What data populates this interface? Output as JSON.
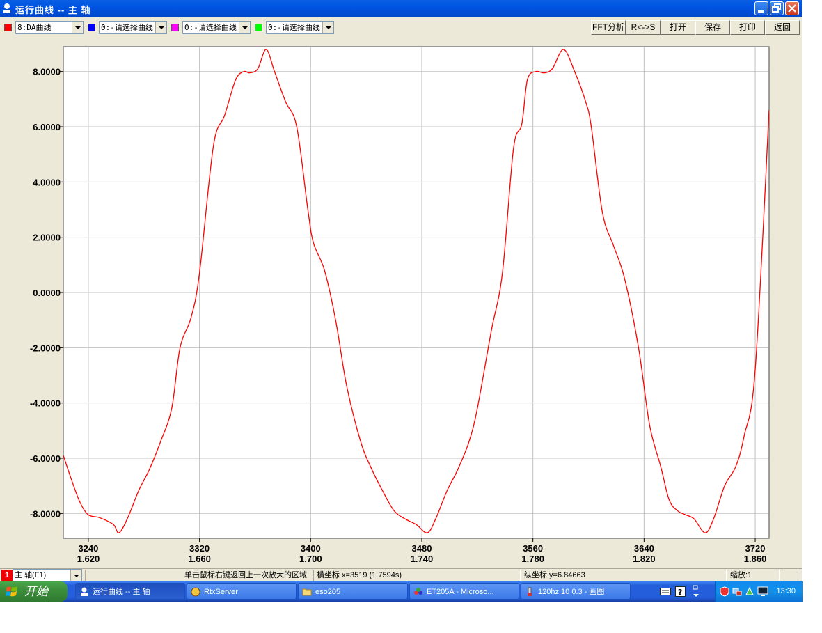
{
  "window": {
    "title": "运行曲线 -- 主  轴"
  },
  "toolbar": {
    "curves": [
      {
        "color": "#ff0000",
        "value": "8:DA曲线"
      },
      {
        "color": "#0000ff",
        "value": "0:-请选择曲线"
      },
      {
        "color": "#ff00ff",
        "value": "0:-请选择曲线"
      },
      {
        "color": "#00ff00",
        "value": "0:-请选择曲线"
      }
    ],
    "buttons": [
      "FFT分析",
      "R<->S",
      "打开",
      "保存",
      "打印",
      "返回"
    ]
  },
  "chart_data": {
    "type": "line",
    "xlim": [
      3222,
      3730
    ],
    "ylim": [
      -8.9,
      8.9
    ],
    "x_ticks": [
      3240,
      3320,
      3400,
      3480,
      3560,
      3640,
      3720
    ],
    "x_tick_labels": [
      "3240",
      "3320",
      "3400",
      "3480",
      "3560",
      "3640",
      "3720"
    ],
    "x_time_labels": [
      "1.620",
      "1.660",
      "1.700",
      "1.740",
      "1.780",
      "1.820",
      "1.860"
    ],
    "y_ticks": [
      8,
      6,
      4,
      2,
      0,
      -2,
      -4,
      -6,
      -8
    ],
    "y_tick_labels": [
      "8.0000",
      "6.0000",
      "4.0000",
      "2.0000",
      "0.0000",
      "-2.0000",
      "-4.0000",
      "-6.0000",
      "-8.0000"
    ],
    "grid": true,
    "series": [
      {
        "color": "#ff0000",
        "x": [
          3222,
          3228,
          3234,
          3240,
          3248,
          3258,
          3262,
          3268,
          3276,
          3284,
          3292,
          3300,
          3306,
          3314,
          3320,
          3330,
          3338,
          3346,
          3352,
          3356,
          3362,
          3368,
          3374,
          3382,
          3390,
          3398,
          3402,
          3410,
          3418,
          3426,
          3436,
          3444,
          3452,
          3460,
          3468,
          3476,
          3484,
          3490,
          3498,
          3506,
          3514,
          3520,
          3530,
          3538,
          3546,
          3552,
          3556,
          3562,
          3568,
          3574,
          3582,
          3590,
          3598,
          3602,
          3610,
          3618,
          3626,
          3636,
          3644,
          3652,
          3658,
          3664,
          3670,
          3676,
          3684,
          3690,
          3698,
          3706,
          3712,
          3720,
          3730
        ],
        "y": [
          -5.9,
          -6.8,
          -7.6,
          -8.05,
          -8.15,
          -8.4,
          -8.7,
          -8.2,
          -7.2,
          -6.4,
          -5.4,
          -4.2,
          -2.0,
          -0.9,
          0.7,
          5.3,
          6.4,
          7.7,
          8.0,
          7.95,
          8.1,
          8.8,
          8.0,
          6.9,
          6.0,
          3.0,
          1.8,
          0.8,
          -1.0,
          -3.4,
          -5.4,
          -6.4,
          -7.2,
          -7.9,
          -8.2,
          -8.4,
          -8.7,
          -8.2,
          -7.2,
          -6.4,
          -5.4,
          -4.2,
          -1.4,
          0.7,
          5.2,
          6.1,
          7.7,
          8.0,
          7.95,
          8.1,
          8.8,
          8.0,
          6.9,
          6.0,
          2.9,
          1.7,
          0.5,
          -2.0,
          -4.8,
          -6.3,
          -7.5,
          -7.9,
          -8.05,
          -8.2,
          -8.7,
          -8.2,
          -7.0,
          -6.3,
          -5.2,
          -2.8,
          6.6
        ]
      }
    ]
  },
  "status": {
    "axis_select": "主  轴(F1)",
    "axis_num": "1",
    "hint": "单击鼠标右键返回上一次放大的区域",
    "xcoord": "横坐标  x=3519  (1.7594s)",
    "ycoord": "纵坐标  y=6.84663",
    "zoom": "缩放:1"
  },
  "taskbar": {
    "start": "开始",
    "tasks": [
      "运行曲线 -- 主  轴",
      "RtxServer",
      "eso205",
      "ET205A - Microso...",
      "120hz 10 0.3 - 画图"
    ],
    "time": "13:30"
  }
}
